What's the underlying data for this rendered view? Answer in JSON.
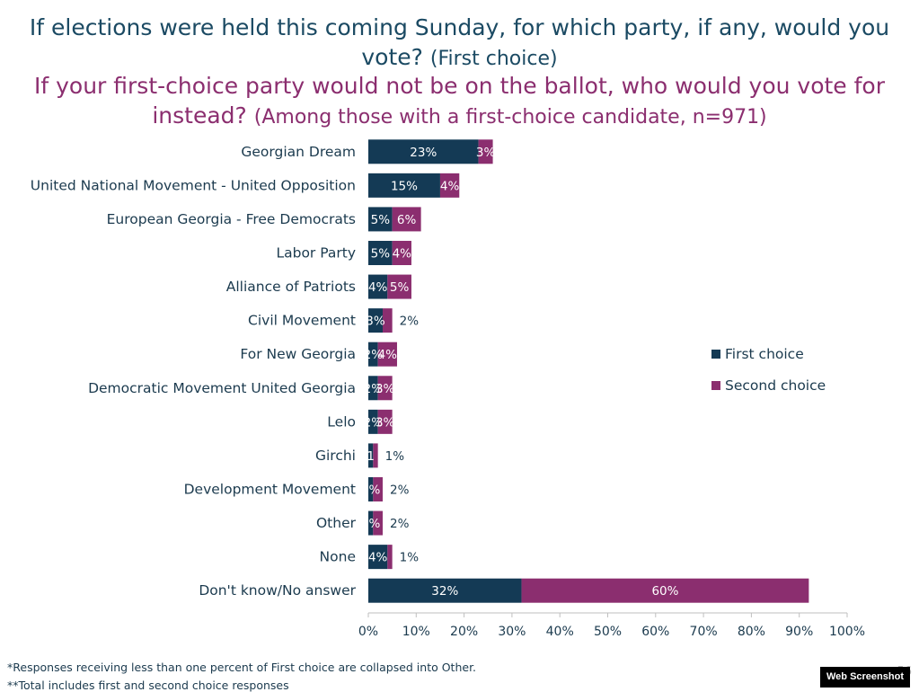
{
  "header": {
    "question1_main": "If elections were held this coming Sunday, for which party, if any, would you vote?",
    "question1_sub": "(First choice)",
    "question2_main": "If your first-choice party would not be on the ballot, who would you vote for instead?",
    "question2_sub": "(Among those with a first-choice candidate, n=971)"
  },
  "chart_data": {
    "type": "bar",
    "orientation": "horizontal",
    "stacked": true,
    "categories": [
      "Georgian Dream",
      "United National Movement - United Opposition",
      "European Georgia - Free Democrats",
      "Labor Party",
      "Alliance of Patriots",
      "Civil Movement",
      "For New Georgia",
      "Democratic Movement United Georgia",
      "Lelo",
      "Girchi",
      "Development Movement",
      "Other",
      "None",
      "Don't know/No answer"
    ],
    "series": [
      {
        "name": "First choice",
        "values": [
          23,
          15,
          5,
          5,
          4,
          3,
          2,
          2,
          2,
          1,
          1,
          1,
          4,
          32
        ],
        "labels": [
          "23%",
          "15%",
          "5%",
          "5%",
          "4%",
          "3%",
          "2%",
          "2%",
          "2%",
          "1",
          "1%",
          "1%",
          "4%",
          "32%"
        ]
      },
      {
        "name": "Second choice",
        "values": [
          3,
          4,
          6,
          4,
          5,
          2,
          4,
          3,
          3,
          1,
          2,
          2,
          1,
          60
        ],
        "labels": [
          "3%",
          "4%",
          "6%",
          "4%",
          "5%",
          "2%",
          "4%",
          "3%",
          "3%",
          "1%",
          "2%",
          "2%",
          "1%",
          "60%"
        ]
      }
    ],
    "xlim": [
      0,
      100
    ],
    "xticks": [
      "0%",
      "10%",
      "20%",
      "30%",
      "40%",
      "50%",
      "60%",
      "70%",
      "80%",
      "90%",
      "100%"
    ],
    "legend_position": "right",
    "grid": false,
    "colors": {
      "first": "#143a55",
      "second": "#8b2e6f"
    }
  },
  "footnotes": {
    "note1": "*Responses receiving less than one percent of First choice are collapsed into Other.",
    "note2": "**Total includes first and second choice responses"
  },
  "page_number": "56",
  "badge": "Web Screenshot"
}
